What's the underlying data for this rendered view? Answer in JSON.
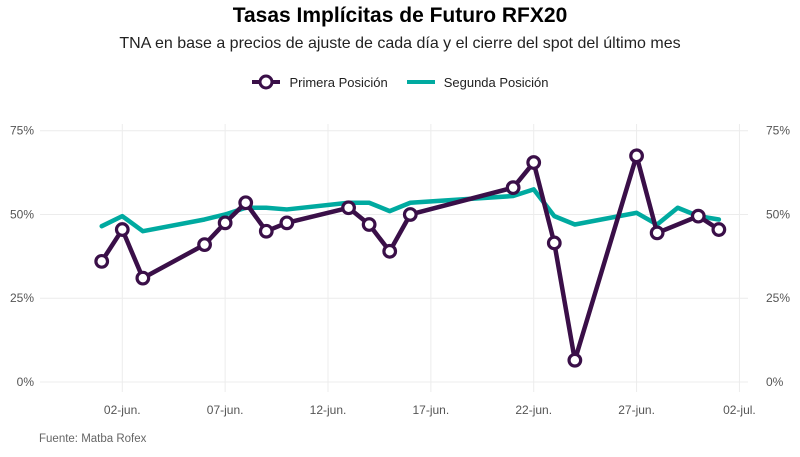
{
  "title": "Tasas Implícitas de Futuro RFX20",
  "subtitle": "TNA en base a precios de ajuste de cada día y el cierre del spot del último mes",
  "source": "Fuente: Matba Rofex",
  "chart_data": {
    "type": "line",
    "title": "Tasas Implícitas de Futuro RFX20",
    "subtitle": "TNA en base a precios de ajuste de cada día y el cierre del spot del último mes",
    "legend_position": "top",
    "grid": true,
    "xlabel": "",
    "ylabel": "",
    "xlim": [
      "2021-05-29",
      "2021-07-03"
    ],
    "ylim": [
      0,
      77
    ],
    "x_ticks": [
      {
        "date": "2021-06-02",
        "label": "02-jun."
      },
      {
        "date": "2021-06-07",
        "label": "07-jun."
      },
      {
        "date": "2021-06-12",
        "label": "12-jun."
      },
      {
        "date": "2021-06-17",
        "label": "17-jun."
      },
      {
        "date": "2021-06-22",
        "label": "22-jun."
      },
      {
        "date": "2021-06-27",
        "label": "27-jun."
      },
      {
        "date": "2021-07-02",
        "label": "02-jul."
      }
    ],
    "y_ticks": [
      {
        "value": 0,
        "label": "0%"
      },
      {
        "value": 25,
        "label": "25%"
      },
      {
        "value": 50,
        "label": "50%"
      },
      {
        "value": 75,
        "label": "75%"
      }
    ],
    "series": [
      {
        "name": "Primera Posición",
        "color": "#3a0f48",
        "marker": "circle",
        "points": [
          {
            "x": "2021-06-01",
            "y": 36
          },
          {
            "x": "2021-06-02",
            "y": 45.5
          },
          {
            "x": "2021-06-03",
            "y": 31
          },
          {
            "x": "2021-06-06",
            "y": 41
          },
          {
            "x": "2021-06-07",
            "y": 47.5
          },
          {
            "x": "2021-06-08",
            "y": 53.5
          },
          {
            "x": "2021-06-09",
            "y": 45
          },
          {
            "x": "2021-06-10",
            "y": 47.5
          },
          {
            "x": "2021-06-13",
            "y": 52
          },
          {
            "x": "2021-06-14",
            "y": 47
          },
          {
            "x": "2021-06-15",
            "y": 39
          },
          {
            "x": "2021-06-16",
            "y": 50
          },
          {
            "x": "2021-06-21",
            "y": 58
          },
          {
            "x": "2021-06-22",
            "y": 65.5
          },
          {
            "x": "2021-06-23",
            "y": 41.5
          },
          {
            "x": "2021-06-24",
            "y": 6.5
          },
          {
            "x": "2021-06-27",
            "y": 67.5
          },
          {
            "x": "2021-06-28",
            "y": 44.5
          },
          {
            "x": "2021-06-30",
            "y": 49.5
          },
          {
            "x": "2021-07-01",
            "y": 45.5
          }
        ]
      },
      {
        "name": "Segunda Posición",
        "color": "#00aaa0",
        "marker": "none",
        "points": [
          {
            "x": "2021-06-01",
            "y": 46.5
          },
          {
            "x": "2021-06-02",
            "y": 49.5
          },
          {
            "x": "2021-06-03",
            "y": 45
          },
          {
            "x": "2021-06-06",
            "y": 48.5
          },
          {
            "x": "2021-06-07",
            "y": 50
          },
          {
            "x": "2021-06-08",
            "y": 52
          },
          {
            "x": "2021-06-09",
            "y": 52
          },
          {
            "x": "2021-06-10",
            "y": 51.5
          },
          {
            "x": "2021-06-13",
            "y": 53.5
          },
          {
            "x": "2021-06-14",
            "y": 53.5
          },
          {
            "x": "2021-06-15",
            "y": 51
          },
          {
            "x": "2021-06-16",
            "y": 53.5
          },
          {
            "x": "2021-06-21",
            "y": 55.5
          },
          {
            "x": "2021-06-22",
            "y": 57.5
          },
          {
            "x": "2021-06-23",
            "y": 49.5
          },
          {
            "x": "2021-06-24",
            "y": 47
          },
          {
            "x": "2021-06-27",
            "y": 50.5
          },
          {
            "x": "2021-06-28",
            "y": 47
          },
          {
            "x": "2021-06-29",
            "y": 52
          },
          {
            "x": "2021-06-30",
            "y": 49.5
          },
          {
            "x": "2021-07-01",
            "y": 48.5
          }
        ]
      }
    ]
  }
}
